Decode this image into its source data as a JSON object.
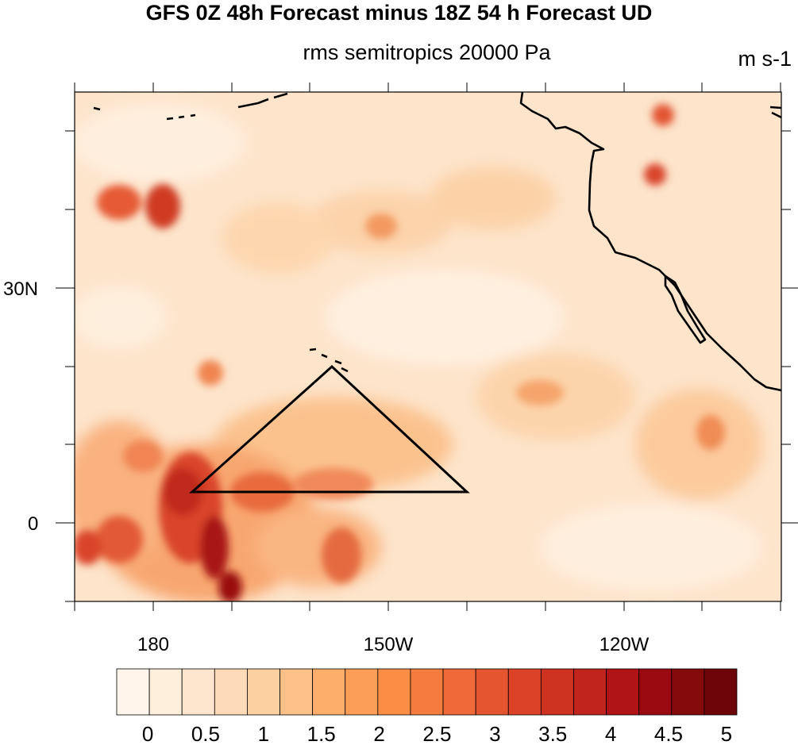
{
  "header": {
    "title": "GFS 0Z 48h Forecast minus 18Z 54 h Forecast UD",
    "subtitle": "rms semitropics 20000 Pa",
    "units": "m s-1"
  },
  "map": {
    "lat_labels": [
      "30N",
      "0"
    ],
    "lon_labels": [
      "180",
      "150W",
      "120W"
    ],
    "lon_range_deg_east": [
      170,
      260
    ],
    "lat_range_deg": [
      -10,
      55
    ],
    "overlay_shape": "triangle",
    "coastlines": "black",
    "colormap": "white-to-dark-red"
  },
  "colorbar": {
    "labels": [
      "0",
      "0.5",
      "1",
      "1.5",
      "2",
      "2.5",
      "3",
      "3.5",
      "4",
      "4.5",
      "5"
    ],
    "colors": [
      "#fff5ea",
      "#feeedc",
      "#fee6ce",
      "#fddbb8",
      "#fdd0a2",
      "#fdc088",
      "#fdae6b",
      "#fd9e58",
      "#fc8d45",
      "#f67b3f",
      "#ef6a38",
      "#e55630",
      "#db4228",
      "#ce3322",
      "#c0241c",
      "#b01416",
      "#9a0a10",
      "#850a0c",
      "#6e0508"
    ]
  }
}
